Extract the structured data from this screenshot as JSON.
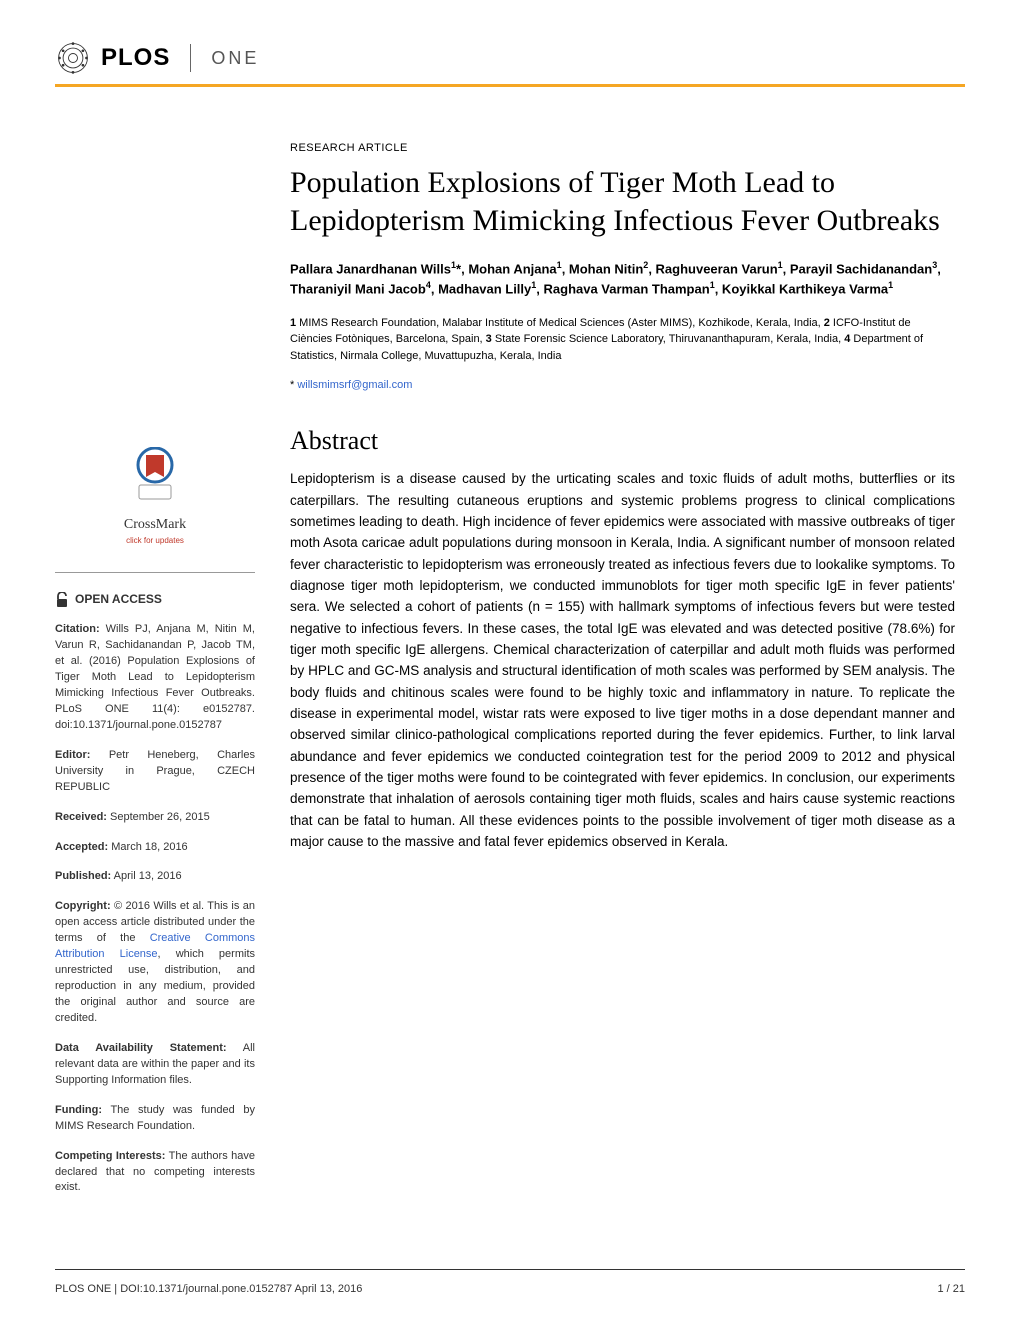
{
  "journal": {
    "logo_text": "PLOS",
    "subtitle": "ONE",
    "accent_color": "#f5a623"
  },
  "article": {
    "type": "RESEARCH ARTICLE",
    "title": "Population Explosions of Tiger Moth Lead to Lepidopterism Mimicking Infectious Fever Outbreaks",
    "authors_html": "Pallara Janardhanan Wills<sup>1</sup>*, Mohan Anjana<sup>1</sup>, Mohan Nitin<sup>2</sup>, Raghuveeran Varun<sup>1</sup>, Parayil Sachidanandan<sup>3</sup>, Tharaniyil Mani Jacob<sup>4</sup>, Madhavan Lilly<sup>1</sup>, Raghava Varman Thampan<sup>1</sup>, Koyikkal Karthikeya Varma<sup>1</sup>",
    "affiliations_html": "<b>1</b> MIMS Research Foundation, Malabar Institute of Medical Sciences (Aster MIMS), Kozhikode, Kerala, India, <b>2</b> ICFO-Institut de Ciències Fotòniques, Barcelona, Spain, <b>3</b> State Forensic Science Laboratory, Thiruvananthapuram, Kerala, India, <b>4</b> Department of Statistics, Nirmala College, Muvattupuzha, Kerala, India",
    "corr_symbol": "*",
    "corr_email": "willsmimsrf@gmail.com"
  },
  "abstract": {
    "heading": "Abstract",
    "text": "Lepidopterism is a disease caused by the urticating scales and toxic fluids of adult moths, butterflies or its caterpillars. The resulting cutaneous eruptions and systemic problems progress to clinical complications sometimes leading to death. High incidence of fever epidemics were associated with massive outbreaks of tiger moth Asota caricae adult populations during monsoon in Kerala, India. A significant number of monsoon related fever characteristic to lepidopterism was erroneously treated as infectious fevers due to lookalike symptoms. To diagnose tiger moth lepidopterism, we conducted immunoblots for tiger moth specific IgE in fever patients' sera. We selected a cohort of patients (n = 155) with hallmark symptoms of infectious fevers but were tested negative to infectious fevers. In these cases, the total IgE was elevated and was detected positive (78.6%) for tiger moth specific IgE allergens. Chemical characterization of caterpillar and adult moth fluids was performed by HPLC and GC-MS analysis and structural identification of moth scales was performed by SEM analysis. The body fluids and chitinous scales were found to be highly toxic and inflammatory in nature. To replicate the disease in experimental model, wistar rats were exposed to live tiger moths in a dose dependant manner and observed similar clinico-pathological complications reported during the fever epidemics. Further, to link larval abundance and fever epidemics we conducted cointegration test for the period 2009 to 2012 and physical presence of the tiger moths were found to be cointegrated with fever epidemics. In conclusion, our experiments demonstrate that inhalation of aerosols containing tiger moth fluids, scales and hairs cause systemic reactions that can be fatal to human. All these evidences points to the possible involvement of tiger moth disease as a major cause to the massive and fatal fever epidemics observed in Kerala."
  },
  "sidebar": {
    "crossmark": {
      "label": "CrossMark",
      "sub": "click for updates"
    },
    "open_access": "OPEN ACCESS",
    "citation": {
      "label": "Citation:",
      "text": " Wills PJ, Anjana M, Nitin M, Varun R, Sachidanandan P, Jacob TM, et al. (2016) Population Explosions of Tiger Moth Lead to Lepidopterism Mimicking Infectious Fever Outbreaks. PLoS ONE 11(4): e0152787. doi:10.1371/journal.pone.0152787"
    },
    "editor": {
      "label": "Editor:",
      "text": " Petr Heneberg, Charles University in Prague, CZECH REPUBLIC"
    },
    "received": {
      "label": "Received:",
      "text": " September 26, 2015"
    },
    "accepted": {
      "label": "Accepted:",
      "text": " March 18, 2016"
    },
    "published": {
      "label": "Published:",
      "text": " April 13, 2016"
    },
    "copyright": {
      "label": "Copyright:",
      "text_before": " © 2016 Wills et al. This is an open access article distributed under the terms of the ",
      "link": "Creative Commons Attribution License",
      "text_after": ", which permits unrestricted use, distribution, and reproduction in any medium, provided the original author and source are credited."
    },
    "data": {
      "label": "Data Availability Statement:",
      "text": " All relevant data are within the paper and its Supporting Information files."
    },
    "funding": {
      "label": "Funding:",
      "text": " The study was funded by MIMS Research Foundation."
    },
    "competing": {
      "label": "Competing Interests:",
      "text": " The authors have declared that no competing interests exist."
    }
  },
  "footer": {
    "left": "PLOS ONE | DOI:10.1371/journal.pone.0152787   April 13, 2016",
    "right": "1 / 21"
  },
  "colors": {
    "link": "#3366cc",
    "text": "#000000",
    "crossmark_red": "#c0392b",
    "crossmark_blue": "#2868a8"
  }
}
